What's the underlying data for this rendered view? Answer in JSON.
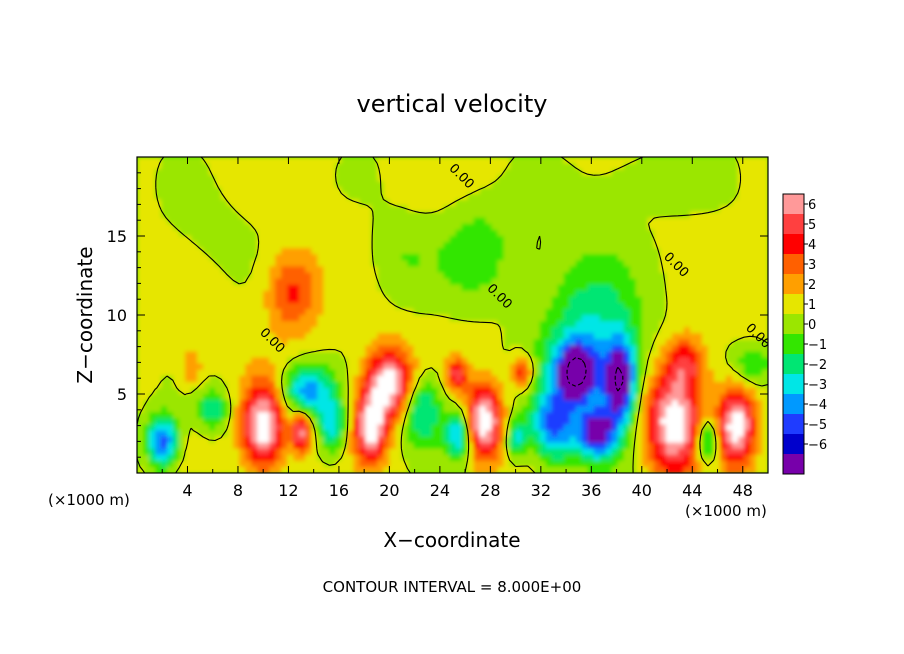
{
  "chart_data": {
    "type": "heatmap",
    "title": "vertical velocity",
    "xlabel": "X−coordinate",
    "ylabel": "Z−coordinate",
    "x_unit_left": "(×1000 m)",
    "x_unit_right": "(×1000 m)",
    "footer": "CONTOUR INTERVAL = 8.000E+00",
    "xlim": [
      0,
      50
    ],
    "ylim": [
      0,
      20
    ],
    "x_ticks": [
      "4",
      "8",
      "12",
      "16",
      "20",
      "24",
      "28",
      "32",
      "36",
      "40",
      "44",
      "48"
    ],
    "y_ticks": [
      "5",
      "10",
      "15"
    ],
    "contour_labels": [
      {
        "text": "0.00",
        "x": 10.5,
        "z": 8.2
      },
      {
        "text": "0.00",
        "x": 28.5,
        "z": 11.0
      },
      {
        "text": "0.00",
        "x": 42.5,
        "z": 13.0
      },
      {
        "text": "0.00",
        "x": 49.0,
        "z": 8.5
      },
      {
        "text": "0.00",
        "x": 25.5,
        "z": 18.6
      }
    ],
    "colorbar": {
      "labels": [
        "6",
        "5",
        "4",
        "3",
        "2",
        "1",
        "0",
        "−1",
        "−2",
        "−3",
        "−4",
        "−5",
        "−6"
      ],
      "colors": [
        "#ff9999",
        "#ff4040",
        "#ff0000",
        "#ff6000",
        "#ff9f00",
        "#e6e600",
        "#9be600",
        "#33e600",
        "#00e673",
        "#00e6e6",
        "#0099ff",
        "#1f3cff",
        "#0000cc",
        "#7700aa"
      ]
    },
    "features": [
      {
        "x": 2.0,
        "z": 2.0,
        "w": -6,
        "rx": 1.2,
        "rz": 1.6
      },
      {
        "x": 4.3,
        "z": 6.6,
        "w": 2,
        "rx": 0.8,
        "rz": 1.0
      },
      {
        "x": 6.0,
        "z": 4.0,
        "w": -3,
        "rx": 1.2,
        "rz": 1.3
      },
      {
        "x": 10.0,
        "z": 3.0,
        "w": 7,
        "rx": 1.6,
        "rz": 2.6
      },
      {
        "x": 12.3,
        "z": 11.5,
        "w": 3.2,
        "rx": 2.0,
        "rz": 2.6
      },
      {
        "x": 13.5,
        "z": 5.2,
        "w": -5,
        "rx": 2.0,
        "rz": 1.6
      },
      {
        "x": 13.0,
        "z": 2.6,
        "w": 6,
        "rx": 0.7,
        "rz": 1.2
      },
      {
        "x": 15.5,
        "z": 3.0,
        "w": -4,
        "rx": 1.0,
        "rz": 1.7
      },
      {
        "x": 20.0,
        "z": 5.6,
        "w": 7,
        "rx": 1.9,
        "rz": 2.2
      },
      {
        "x": 18.5,
        "z": 2.8,
        "w": 6.5,
        "rx": 1.2,
        "rz": 2.1
      },
      {
        "x": 22.5,
        "z": 4.0,
        "w": -4,
        "rx": 1.6,
        "rz": 2.3
      },
      {
        "x": 25.5,
        "z": 2.4,
        "w": -5,
        "rx": 1.0,
        "rz": 1.5
      },
      {
        "x": 25.3,
        "z": 6.2,
        "w": 5,
        "rx": 0.7,
        "rz": 0.9
      },
      {
        "x": 27.5,
        "z": 3.2,
        "w": 7,
        "rx": 1.4,
        "rz": 2.3
      },
      {
        "x": 30.5,
        "z": 6.4,
        "w": 4.5,
        "rx": 0.8,
        "rz": 1.0
      },
      {
        "x": 30.0,
        "z": 2.2,
        "w": -4,
        "rx": 0.7,
        "rz": 1.2
      },
      {
        "x": 27.0,
        "z": 14.0,
        "w": -2,
        "rx": 3.0,
        "rz": 3.0
      },
      {
        "x": 36.0,
        "z": 8.0,
        "w": -3.5,
        "rx": 4.0,
        "rz": 5.5
      },
      {
        "x": 34.8,
        "z": 6.4,
        "w": -6.5,
        "rx": 1.6,
        "rz": 1.8
      },
      {
        "x": 38.3,
        "z": 5.8,
        "w": -7,
        "rx": 1.2,
        "rz": 2.6
      },
      {
        "x": 33.0,
        "z": 3.0,
        "w": -5,
        "rx": 1.8,
        "rz": 2.3
      },
      {
        "x": 36.5,
        "z": 2.5,
        "w": -6,
        "rx": 1.5,
        "rz": 1.6
      },
      {
        "x": 21.0,
        "z": 13.5,
        "w": -1.2,
        "rx": 2.5,
        "rz": 2.6
      },
      {
        "x": 42.5,
        "z": 3.2,
        "w": 7,
        "rx": 2.2,
        "rz": 3.2
      },
      {
        "x": 43.5,
        "z": 7.0,
        "w": 3.5,
        "rx": 1.5,
        "rz": 1.6
      },
      {
        "x": 45.2,
        "z": 2.0,
        "w": -5,
        "rx": 0.8,
        "rz": 1.4
      },
      {
        "x": 47.5,
        "z": 3.0,
        "w": 7,
        "rx": 1.4,
        "rz": 2.4
      },
      {
        "x": 48.8,
        "z": 6.8,
        "w": -2.5,
        "rx": 1.5,
        "rz": 1.2
      },
      {
        "x": 40.5,
        "z": 18.5,
        "w": -0.8,
        "rx": 5.0,
        "rz": 2.0
      },
      {
        "x": 6.0,
        "z": 15.0,
        "w": -0.5,
        "rx": 4.0,
        "rz": 3.0
      },
      {
        "x": 4.0,
        "z": 9.0,
        "w": 0.6,
        "rx": 3.0,
        "rz": 2.0
      }
    ]
  }
}
